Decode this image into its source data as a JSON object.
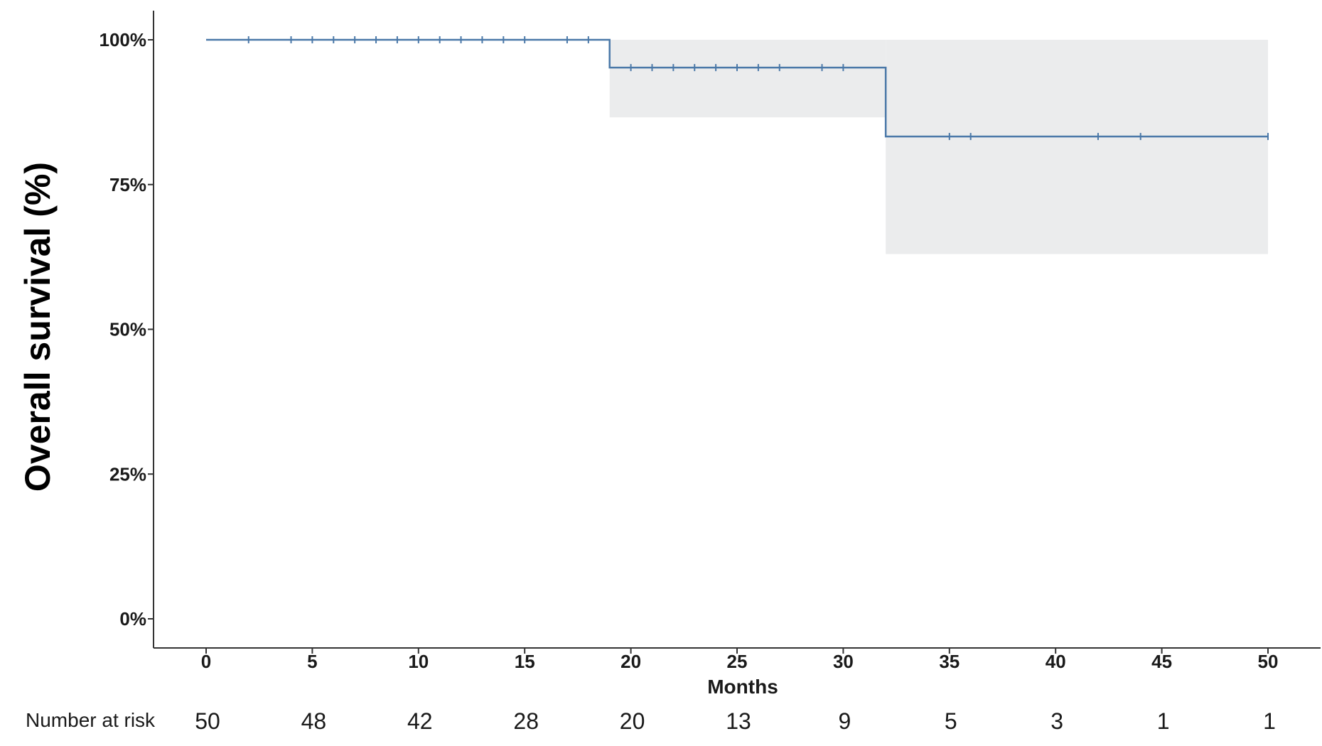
{
  "chart_data": {
    "type": "line",
    "subtype": "kaplan-meier step curve with confidence band",
    "xlabel": "Months",
    "ylabel": "Overall survival (%)",
    "xlim": [
      0,
      50
    ],
    "ylim": [
      0,
      1
    ],
    "x_ticks": [
      0,
      5,
      10,
      15,
      20,
      25,
      30,
      35,
      40,
      45,
      50
    ],
    "y_ticks": [
      {
        "value": 0,
        "label": "0%"
      },
      {
        "value": 0.25,
        "label": "25%"
      },
      {
        "value": 0.5,
        "label": "50%"
      },
      {
        "value": 0.75,
        "label": "75%"
      },
      {
        "value": 1.0,
        "label": "100%"
      }
    ],
    "grid": false,
    "series": [
      {
        "steps": [
          {
            "x": 0,
            "y": 1.0
          },
          {
            "x": 19,
            "y": 0.952
          },
          {
            "x": 32,
            "y": 0.833
          },
          {
            "x": 50,
            "y": 0.833
          }
        ],
        "ci_band": [
          {
            "x0": 19,
            "x1": 32,
            "lower": 0.866,
            "upper": 1.0
          },
          {
            "x0": 32,
            "x1": 50,
            "lower": 0.63,
            "upper": 1.0
          }
        ],
        "censor_marks": [
          2,
          4,
          5,
          6,
          7,
          8,
          9,
          10,
          11,
          12,
          13,
          14,
          15,
          17,
          18,
          20,
          21,
          22,
          23,
          24,
          25,
          26,
          27,
          29,
          30,
          35,
          36,
          42,
          44,
          50
        ],
        "color": "#4a78a8",
        "band_color": "#ebeced"
      }
    ],
    "risk_table": {
      "title": "Number at risk",
      "times": [
        0,
        5,
        10,
        15,
        20,
        25,
        30,
        35,
        40,
        45,
        50
      ],
      "values": [
        "50",
        "48",
        "42",
        "28",
        "20",
        "13",
        "9",
        "5",
        "3",
        "1",
        "1"
      ]
    }
  }
}
